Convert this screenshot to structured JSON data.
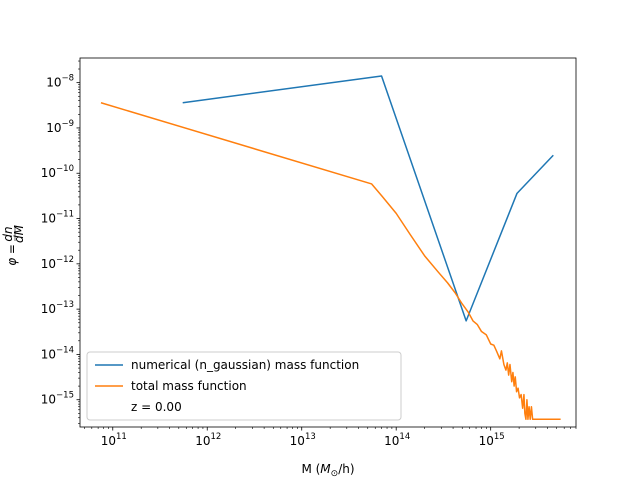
{
  "chart_data": {
    "type": "line",
    "xscale": "log",
    "yscale": "log",
    "xlabel": "M ($M_\\odot$/h)",
    "xlabel_main": "M (",
    "xlabel_sym": "M",
    "xlabel_sub": "⊙",
    "xlabel_tail": "/h)",
    "ylabel": "$\\phi = \\frac{dn}{dM}$",
    "ylabel_main": "φ =",
    "ylabel_num": "dn",
    "ylabel_den": "dM",
    "xlim": [
      45000000000.0,
      8000000000000000.0
    ],
    "ylim": [
      2.5e-16,
      3.5e-08
    ],
    "grid": false,
    "legend_position": "lower left",
    "x_ticks": [
      {
        "base": "10",
        "exp": "11",
        "value": 100000000000.0
      },
      {
        "base": "10",
        "exp": "12",
        "value": 1000000000000.0
      },
      {
        "base": "10",
        "exp": "13",
        "value": 10000000000000.0
      },
      {
        "base": "10",
        "exp": "14",
        "value": 100000000000000.0
      },
      {
        "base": "10",
        "exp": "15",
        "value": 1000000000000000.0
      }
    ],
    "y_ticks": [
      {
        "base": "10",
        "exp": "−15",
        "value": 1e-15
      },
      {
        "base": "10",
        "exp": "−14",
        "value": 1e-14
      },
      {
        "base": "10",
        "exp": "−13",
        "value": 1e-13
      },
      {
        "base": "10",
        "exp": "−12",
        "value": 1e-12
      },
      {
        "base": "10",
        "exp": "−11",
        "value": 1e-11
      },
      {
        "base": "10",
        "exp": "−10",
        "value": 1e-10
      },
      {
        "base": "10",
        "exp": "−9",
        "value": 1e-09
      },
      {
        "base": "10",
        "exp": "−8",
        "value": 1e-08
      }
    ],
    "series": [
      {
        "name": "numerical (n_gaussian) mass function",
        "color": "#1f77b4",
        "x": [
          550000000000.0,
          70000000000000.0,
          550000000000000.0,
          1900000000000000.0,
          4600000000000000.0
        ],
        "y": [
          3.6e-09,
          1.4e-08,
          5.5e-14,
          3.6e-11,
          2.5e-10
        ]
      },
      {
        "name": "total mass function",
        "color": "#ff7f0e",
        "x": [
          75000000000.0,
          55000000000000.0,
          70000000000000.0,
          100000000000000.0,
          140000000000000.0,
          200000000000000.0,
          280000000000000.0,
          350000000000000.0,
          420000000000000.0,
          500000000000000.0,
          580000000000000.0,
          650000000000000.0,
          720000000000000.0,
          800000000000000.0,
          900000000000000.0,
          1000000000000000.0,
          1080000000000000.0,
          1150000000000000.0,
          1250000000000000.0,
          1300000000000000.0,
          1380000000000000.0,
          1450000000000000.0,
          1500000000000000.0,
          1550000000000000.0,
          1600000000000000.0,
          1670000000000000.0,
          1720000000000000.0,
          1770000000000000.0,
          1820000000000000.0,
          1880000000000000.0,
          1950000000000000.0,
          2020000000000000.0,
          2100000000000000.0,
          2180000000000000.0,
          2250000000000000.0,
          2300000000000000.0,
          2360000000000000.0,
          2420000000000000.0,
          2480000000000000.0,
          2550000000000000.0,
          2620000000000000.0,
          2700000000000000.0,
          2780000000000000.0,
          2860000000000000.0,
          3000000000000000.0,
          3500000000000000.0,
          4500000000000000.0,
          5500000000000000.0
        ],
        "y": [
          3.6e-09,
          5.8e-11,
          3.2e-11,
          1.3e-11,
          4.5e-12,
          1.5e-12,
          6.5e-13,
          3.8e-13,
          2.3e-13,
          1.3e-13,
          8.5e-14,
          5.5e-14,
          4.6e-14,
          3.2e-14,
          2.7e-14,
          1.7e-14,
          1.6e-14,
          1.2e-14,
          8e-15,
          1.2e-14,
          6e-15,
          4.5e-15,
          6.5e-15,
          3.5e-15,
          6e-15,
          2.5e-15,
          4e-15,
          2e-15,
          3.2e-15,
          1.5e-15,
          1.8e-15,
          1.1e-15,
          1.3e-15,
          6.5e-16,
          1.3e-15,
          5e-16,
          3.7e-16,
          1e-15,
          3.7e-16,
          7e-16,
          3.7e-16,
          7e-16,
          3.7e-16,
          3.7e-16,
          3.7e-16,
          3.7e-16,
          3.7e-16,
          3.7e-16
        ]
      }
    ],
    "legend_extra": "z = 0.00"
  }
}
